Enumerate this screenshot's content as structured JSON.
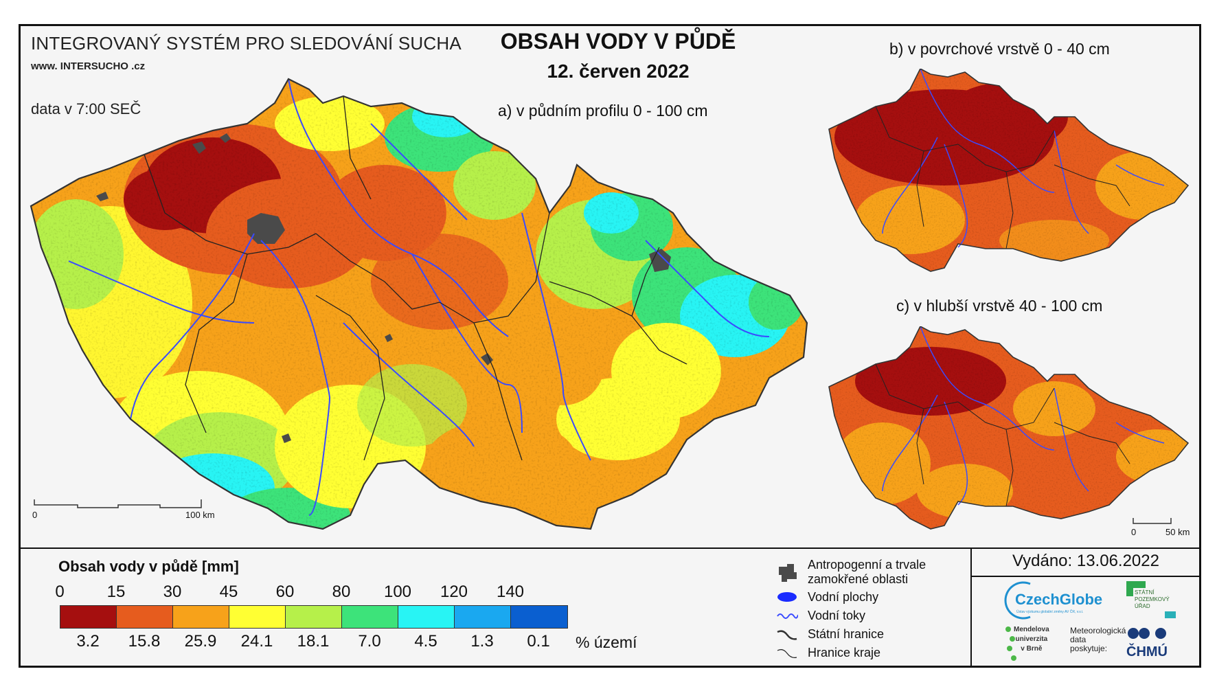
{
  "header": {
    "system_title": "INTEGROVANÝ SYSTÉM PRO SLEDOVÁNÍ SUCHA",
    "website": "www. INTERSUCHO .cz",
    "data_time": "data v 7:00 SEČ",
    "map_title": "OBSAH VODY V PŮDĚ",
    "map_date": "12. červen 2022"
  },
  "panels": {
    "a": "a) v půdním profilu 0 - 100 cm",
    "b": "b) v povrchové vrstvě 0 - 40 cm",
    "c": "c) v hlubší vrstvě 40 - 100 cm"
  },
  "scale_bars": {
    "main": {
      "start": "0",
      "end": "100 km"
    },
    "small": {
      "start": "0",
      "end": "50 km"
    }
  },
  "legend": {
    "title": "Obsah vody v půdě  [mm]",
    "thresholds": [
      "0",
      "15",
      "30",
      "45",
      "60",
      "80",
      "100",
      "120",
      "140"
    ],
    "class_colors": [
      "#a50f0f",
      "#e65c1e",
      "#f7a21a",
      "#ffff33",
      "#b6f04a",
      "#3de37a",
      "#28f4f4",
      "#1aa8f0",
      "#0a5fd0"
    ],
    "area_percent": [
      "3.2",
      "15.8",
      "25.9",
      "24.1",
      "18.1",
      "7.0",
      "4.5",
      "1.3",
      "0.1"
    ],
    "percent_unit": "% území"
  },
  "symbols": {
    "anthropogenic": "Antropogenní a trvale\nzamokřené oblasti",
    "water_bodies": "Vodní plochy",
    "rivers": "Vodní toky",
    "state_border": "Státní hranice",
    "region_border": "Hranice kraje",
    "colors": {
      "anthropogenic": "#4a4a4a",
      "water": "#1a2bff",
      "river": "#3a4bff",
      "border": "#333333"
    }
  },
  "issued": "Vydáno: 13.06.2022",
  "logos": {
    "czechglobe": "CzechGlobe",
    "czechglobe_sub": "Ústav výzkumu globální změny AV ČR, v.v.i.",
    "spu": "STÁTNÍ\nPOZEMKOVÝ\nÚŘAD",
    "mendel": "Mendelova\nuniverzita\nv Brně",
    "meteo": "Meteorologická\ndata\nposkytuje:",
    "chmu": "ČHMÚ"
  }
}
